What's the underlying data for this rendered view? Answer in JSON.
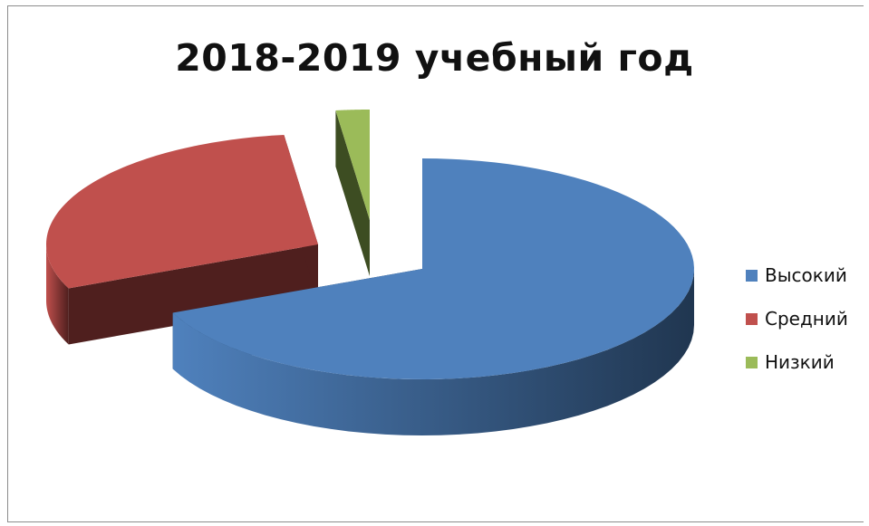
{
  "chart_data": {
    "type": "pie",
    "title": "2018-2019 учебный год",
    "series": [
      {
        "name": "Высокий",
        "value": 68.5,
        "color": "#4f81bd",
        "dark": "#203650"
      },
      {
        "name": "Средний",
        "value": 29.5,
        "color": "#c0504d",
        "dark": "#4f1f1e"
      },
      {
        "name": "Низкий",
        "value": 2.0,
        "color": "#9bbb59",
        "dark": "#3d4d22"
      }
    ],
    "legend_position": "right",
    "style": "3d-exploded"
  }
}
